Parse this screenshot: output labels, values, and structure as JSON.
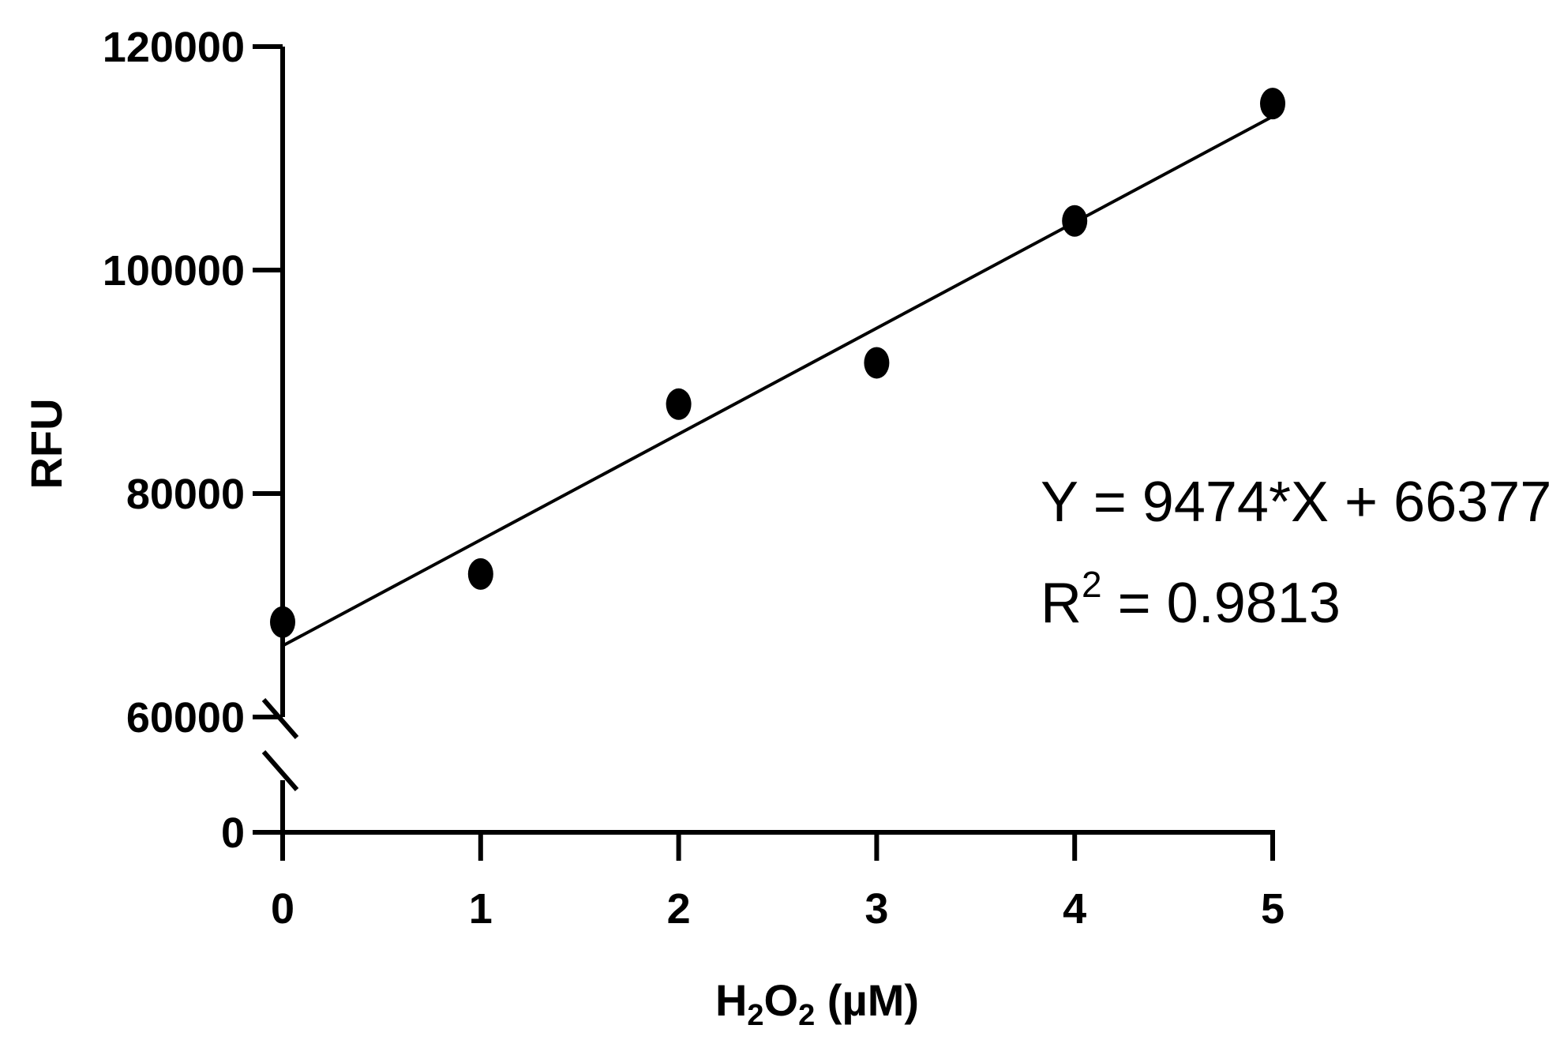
{
  "chart_data": {
    "type": "scatter",
    "x_label": {
      "main": "H",
      "sub1": "2",
      "mid": "O",
      "sub2": "2",
      "unit": " (µM)"
    },
    "y_label": "RFU",
    "x_ticks": [
      "0",
      "1",
      "2",
      "3",
      "4",
      "5"
    ],
    "y_ticks_upper": [
      "60000",
      "80000",
      "100000",
      "120000"
    ],
    "y_ticks_lower": [
      "0"
    ],
    "xlim": [
      0,
      5
    ],
    "ylim": [
      60000,
      120000
    ],
    "y_axis_break": true,
    "points": [
      {
        "x": 0,
        "y": 68500
      },
      {
        "x": 1,
        "y": 72800
      },
      {
        "x": 2,
        "y": 88000
      },
      {
        "x": 3,
        "y": 91700
      },
      {
        "x": 4,
        "y": 104400
      },
      {
        "x": 5,
        "y": 114900
      }
    ],
    "fit": {
      "slope": 9474,
      "intercept": 66377
    },
    "equation": "Y = 9474*X + 66377",
    "r2_label": "R",
    "r2_sup": "2",
    "r2_value": " = 0.9813",
    "grid": false,
    "marker_color": "#000000"
  }
}
